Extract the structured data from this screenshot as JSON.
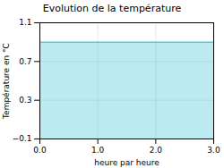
{
  "chart_data": {
    "type": "area",
    "title": "Evolution de la température",
    "x_label": "heure par heure",
    "y_label": "Température en °C",
    "x": [
      0,
      3
    ],
    "values": [
      0.9,
      0.9
    ],
    "color": "#55ccdd",
    "xlim": [
      0,
      3
    ],
    "ylim": [
      -0.1,
      1.1
    ],
    "xticks": [
      0,
      1,
      2,
      3
    ],
    "yticks": [
      -0.1,
      0.3,
      0.7,
      1.1
    ],
    "grid": true
  }
}
